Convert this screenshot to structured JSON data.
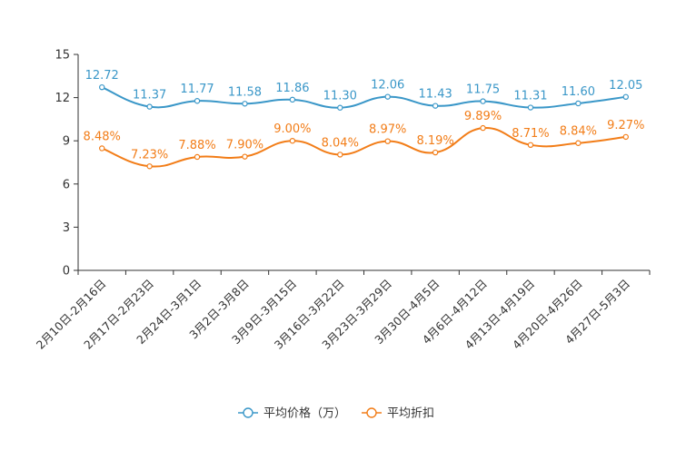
{
  "chart_data": {
    "type": "line",
    "categories": [
      "2月10日-2月16日",
      "2月17日-2月23日",
      "2月24日-3月1日",
      "3月2日-3月8日",
      "3月9日-3月15日",
      "3月16日-3月22日",
      "3月23日-3月29日",
      "3月30日-4月5日",
      "4月6日-4月12日",
      "4月13日-4月19日",
      "4月20日-4月26日",
      "4月27日-5月3日"
    ],
    "ylim": [
      0,
      15
    ],
    "yticks": [
      "0",
      "3",
      "6",
      "9",
      "12",
      "15"
    ],
    "series": [
      {
        "name": "平均价格（万）",
        "color": "#3a97c8",
        "values": [
          12.72,
          11.37,
          11.77,
          11.58,
          11.86,
          11.3,
          12.06,
          11.43,
          11.75,
          11.31,
          11.6,
          12.05
        ],
        "labels": [
          "12.72",
          "11.37",
          "11.77",
          "11.58",
          "11.86",
          "11.30",
          "12.06",
          "11.43",
          "11.75",
          "11.31",
          "11.60",
          "12.05"
        ]
      },
      {
        "name": "平均折扣",
        "color": "#f27d18",
        "values": [
          8.48,
          7.23,
          7.88,
          7.9,
          9.0,
          8.04,
          8.97,
          8.19,
          9.89,
          8.71,
          8.84,
          9.27
        ],
        "labels": [
          "8.48%",
          "7.23%",
          "7.88%",
          "7.90%",
          "9.00%",
          "8.04%",
          "8.97%",
          "8.19%",
          "9.89%",
          "8.71%",
          "8.84%",
          "9.27%"
        ]
      }
    ],
    "title": "",
    "xlabel": "",
    "ylabel": "",
    "legend_position": "bottom-center"
  }
}
